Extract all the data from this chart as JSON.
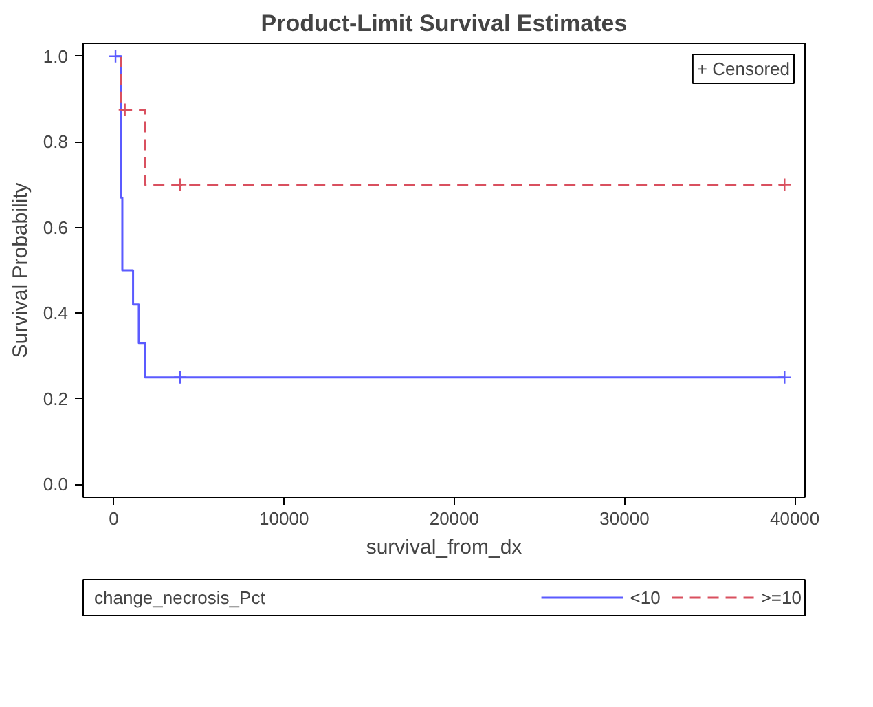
{
  "chart_data": {
    "type": "step",
    "title": "Product-Limit Survival Estimates",
    "xlabel": "survival_from_dx",
    "ylabel": "Survival Probability",
    "legend_title": "change_necrosis_Pct",
    "xlim": [
      -1800,
      40600
    ],
    "xticks": [
      0,
      10000,
      20000,
      30000,
      40000
    ],
    "ylim": [
      -0.03,
      1.03
    ],
    "yticks": [
      {
        "value": 0,
        "label": "0.0"
      },
      {
        "value": 0.2,
        "label": "0.2"
      },
      {
        "value": 0.4,
        "label": "0.4"
      },
      {
        "value": 0.6,
        "label": "0.6"
      },
      {
        "value": 0.8,
        "label": "0.8"
      },
      {
        "value": 1,
        "label": "1.0"
      }
    ],
    "grid": false,
    "legend": "bottom",
    "series": [
      {
        "name": "<10",
        "color": "#5b5bff",
        "line_style": "solid",
        "x": [
          100,
          420,
          500,
          1130,
          1470,
          1840,
          39400
        ],
        "values": [
          1.0,
          0.67,
          0.5,
          0.42,
          0.33,
          0.25,
          0.25
        ]
      },
      {
        "name": ">=10",
        "color": "#d9505f",
        "line_style": "dashed",
        "x": [
          420,
          420,
          1840,
          39400
        ],
        "values": [
          1.0,
          0.875,
          0.7,
          0.7
        ]
      },
      {
        "type": "scatter",
        "marker": "cross",
        "color": "#5b5bff",
        "x": [
          100,
          3900,
          39400
        ],
        "values": [
          1.0,
          0.25,
          0.25
        ]
      },
      {
        "type": "scatter",
        "marker": "cross",
        "color": "#d9505f",
        "x": [
          650,
          3900,
          39400
        ],
        "values": [
          0.875,
          0.7,
          0.7
        ]
      }
    ],
    "annotations": [
      "+ Censored"
    ]
  }
}
